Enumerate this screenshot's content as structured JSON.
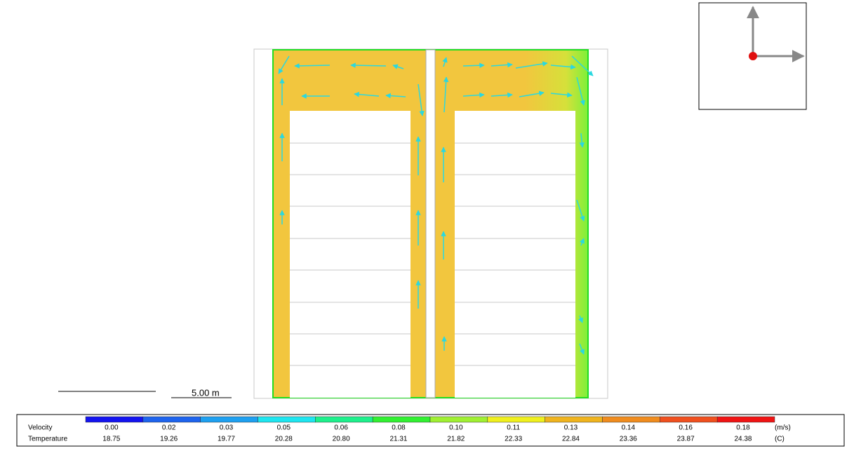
{
  "scale_bar": "5.00 m",
  "legend": {
    "rows": [
      "Velocity",
      "Temperature"
    ],
    "colors": [
      "#1414f0",
      "#1e64ee",
      "#1ea0f0",
      "#1ee6f0",
      "#1ef08c",
      "#32f032",
      "#a0f032",
      "#f0f01e",
      "#f0b41e",
      "#f08c1e",
      "#f0501e",
      "#f01414"
    ],
    "velocity": [
      "0.00",
      "0.02",
      "0.03",
      "0.05",
      "0.06",
      "0.08",
      "0.10",
      "0.11",
      "0.13",
      "0.14",
      "0.16",
      "0.18"
    ],
    "temperature": [
      "18.75",
      "19.26",
      "19.77",
      "20.28",
      "20.80",
      "21.31",
      "21.82",
      "22.33",
      "22.84",
      "23.36",
      "23.87",
      "24.38"
    ],
    "velocity_unit": "(m/s)",
    "temperature_unit": "(C)"
  }
}
